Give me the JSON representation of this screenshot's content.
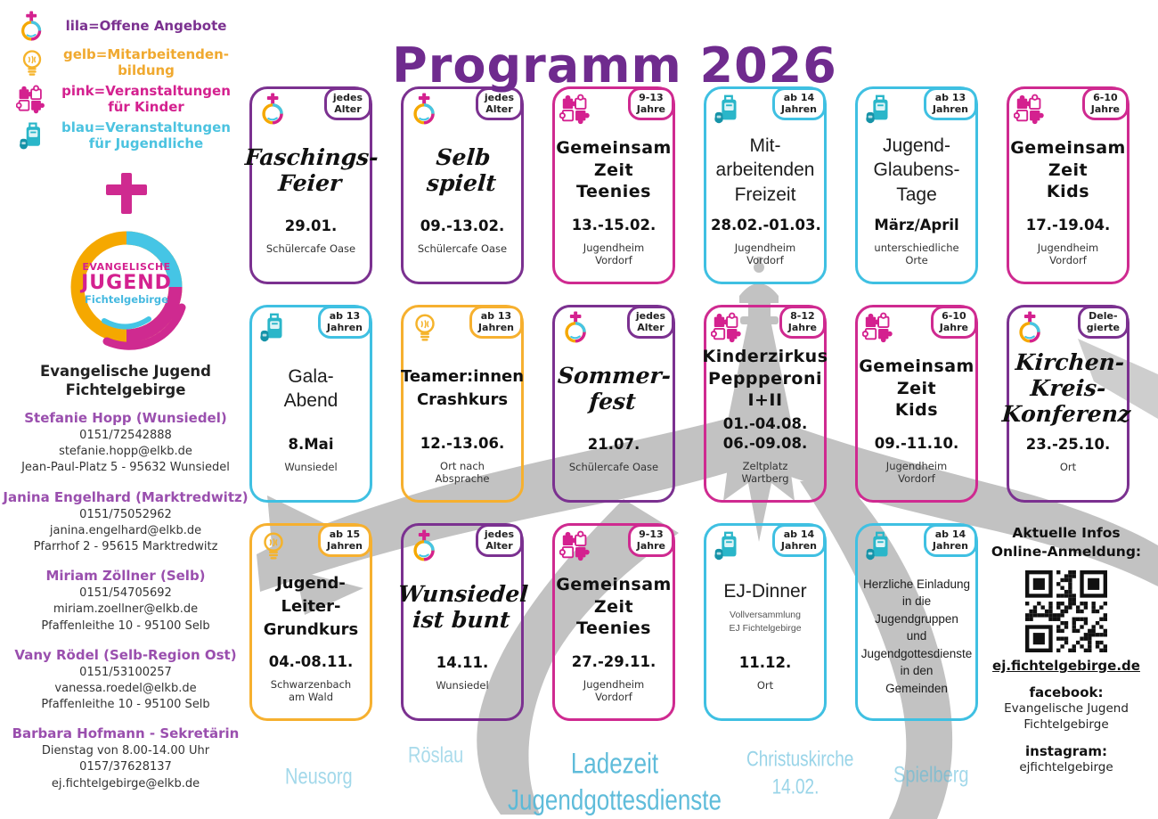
{
  "title": "Programm 2026",
  "colors": {
    "lila": "#7b3190",
    "pink": "#cf2a90",
    "blau": "#3fc0e2",
    "gelb": "#f6b02f",
    "title": "#6f2b8e",
    "hand": "#57b9d9"
  },
  "legend": {
    "items": [
      {
        "icon": "ej-logo",
        "label": "lila=Offene Angebote",
        "color": "lila"
      },
      {
        "icon": "lightbulb",
        "label": "gelb=Mitarbeitenden-\nbildung",
        "color": "gelb"
      },
      {
        "icon": "puzzle",
        "label": "pink=Veranstaltungen\nfür Kinder",
        "color": "pink"
      },
      {
        "icon": "luggage",
        "label": "blau=Veranstaltungen\nfür Jugendliche",
        "color": "blau"
      }
    ]
  },
  "logo": {
    "line1": "EVANGELISCHE",
    "line2": "JUGEND",
    "line3": "Fichtelgebirge"
  },
  "org_name": "Evangelische Jugend\nFichtelgebirge",
  "contacts": [
    {
      "name": "Stefanie Hopp (Wunsiedel)",
      "lines": "0151/72542888\nstefanie.hopp@elkb.de\nJean-Paul-Platz 5 - 95632 Wunsiedel"
    },
    {
      "name": "Janina Engelhard (Marktredwitz)",
      "lines": "0151/75052962\njanina.engelhard@elkb.de\nPfarrhof 2 - 95615 Marktredwitz"
    },
    {
      "name": "Miriam Zöllner (Selb)",
      "lines": "0151/54705692\nmiriam.zoellner@elkb.de\nPfaffenleithe 10 - 95100 Selb"
    },
    {
      "name": "Vany Rödel (Selb-Region Ost)",
      "lines": "0151/53100257\nvanessa.roedel@elkb.de\nPfaffenleithe 10 - 95100 Selb"
    },
    {
      "name": "Barbara Hofmann - Sekretärin",
      "lines": "Dienstag von 8.00-14.00 Uhr\n0157/37628137\nej.fichtelgebirge@elkb.de"
    }
  ],
  "cards": [
    {
      "color": "lila",
      "icon": "ej-logo",
      "badge": "jedes\nAlter",
      "title": "Faschings-\nFeier",
      "title_style": "script",
      "date": "29.01.",
      "location": "Schülercafe Oase"
    },
    {
      "color": "lila",
      "icon": "ej-logo",
      "badge": "jedes\nAlter",
      "title": "Selb\nspielt",
      "title_style": "script",
      "date": "09.-13.02.",
      "location": "Schülercafe Oase"
    },
    {
      "color": "pink",
      "icon": "puzzle",
      "badge": "9-13\nJahre",
      "title": "Gemeinsam\nZeit\nTeenies",
      "title_style": "fun",
      "date": "13.-15.02.",
      "location": "Jugendheim\nVordorf"
    },
    {
      "color": "blau",
      "icon": "luggage",
      "badge": "ab 14\nJahren",
      "title": "Mit-\narbeitenden\nFreizeit",
      "title_style": "thin",
      "date": "28.02.-01.03.",
      "location": "Jugendheim\nVordorf"
    },
    {
      "color": "blau",
      "icon": "luggage",
      "badge": "ab 13\nJahren",
      "title": "Jugend-\nGlaubens-\nTage",
      "title_style": "thin",
      "date": "März/April",
      "location": "unterschiedliche\nOrte"
    },
    {
      "color": "pink",
      "icon": "puzzle",
      "badge": "6-10\nJahre",
      "title": "Gemeinsam\nZeit\nKids",
      "title_style": "fun",
      "date": "17.-19.04.",
      "location": "Jugendheim\nVordorf"
    },
    {
      "color": "blau",
      "icon": "luggage",
      "badge": "ab 13\nJahren",
      "title": "Gala-\nAbend",
      "title_style": "thin",
      "date": "8.Mai",
      "location": "Wunsiedel"
    },
    {
      "color": "gelb",
      "icon": "lightbulb",
      "badge": "ab 13\nJahren",
      "title": "Teamer:innen\nCrashkurs",
      "title_style": "bold",
      "date": "12.-13.06.",
      "location": "Ort nach\nAbsprache"
    },
    {
      "color": "lila",
      "icon": "ej-logo",
      "badge": "jedes\nAlter",
      "title": "Sommer-\nfest",
      "title_style": "script",
      "date": "21.07.",
      "location": "Schülercafe Oase"
    },
    {
      "color": "pink",
      "icon": "puzzle",
      "badge": "8-12\nJahre",
      "title": "Kinderzirkus\nPeppperoni\nI+II",
      "title_style": "fun",
      "date": "01.-04.08.\n06.-09.08.",
      "location": "Zeltplatz\nWartberg"
    },
    {
      "color": "pink",
      "icon": "puzzle",
      "badge": "6-10\nJahre",
      "title": "Gemeinsam\nZeit\nKids",
      "title_style": "fun",
      "date": "09.-11.10.",
      "location": "Jugendheim\nVordorf"
    },
    {
      "color": "lila",
      "icon": "ej-logo",
      "badge": "Dele-\ngierte",
      "title": "Kirchen-\nKreis-\nKonferenz",
      "title_style": "script",
      "date": "23.-25.10.",
      "location": "Ort"
    },
    {
      "color": "gelb",
      "icon": "lightbulb",
      "badge": "ab 15\nJahren",
      "title": "Jugend-\nLeiter-\nGrundkurs",
      "title_style": "bold",
      "date": "04.-08.11.",
      "location": "Schwarzenbach\nam Wald"
    },
    {
      "color": "lila",
      "icon": "ej-logo",
      "badge": "jedes\nAlter",
      "title": "Wunsiedel\nist bunt",
      "title_style": "script",
      "date": "14.11.",
      "location": "Wunsiedel"
    },
    {
      "color": "pink",
      "icon": "puzzle",
      "badge": "9-13\nJahre",
      "title": "Gemeinsam\nZeit\nTeenies",
      "title_style": "fun",
      "date": "27.-29.11.",
      "location": "Jugendheim\nVordorf"
    },
    {
      "color": "blau",
      "icon": "luggage",
      "badge": "ab 14\nJahren",
      "title": "EJ-Dinner",
      "title_style": "thin",
      "subtitle": "Vollversammlung\nEJ Fichtelgebirge",
      "date": "11.12.",
      "location": "Ort"
    },
    {
      "color": "blau",
      "icon": "luggage",
      "badge": "ab 14\nJahren",
      "title_style": "thin",
      "body": "Herzliche Einladung\nin die\nJugendgruppen\nund\nJugendgottesdienste\nin den\nGemeinden"
    }
  ],
  "info": {
    "heading": "Aktuelle Infos\nOnline-Anmeldung:",
    "url": "ej.fichtelgebirge.de",
    "facebook_label": "facebook:",
    "facebook_value": "Evangelische Jugend\nFichtelgebirge",
    "instagram_label": "instagram:",
    "instagram_value": "ejfichtelgebirge"
  },
  "footer_notes": [
    "Neusorg",
    "Röslau",
    "Ladezeit\nJugendgottesdienste",
    "Christuskirche\n14.02.",
    "Spielberg"
  ]
}
